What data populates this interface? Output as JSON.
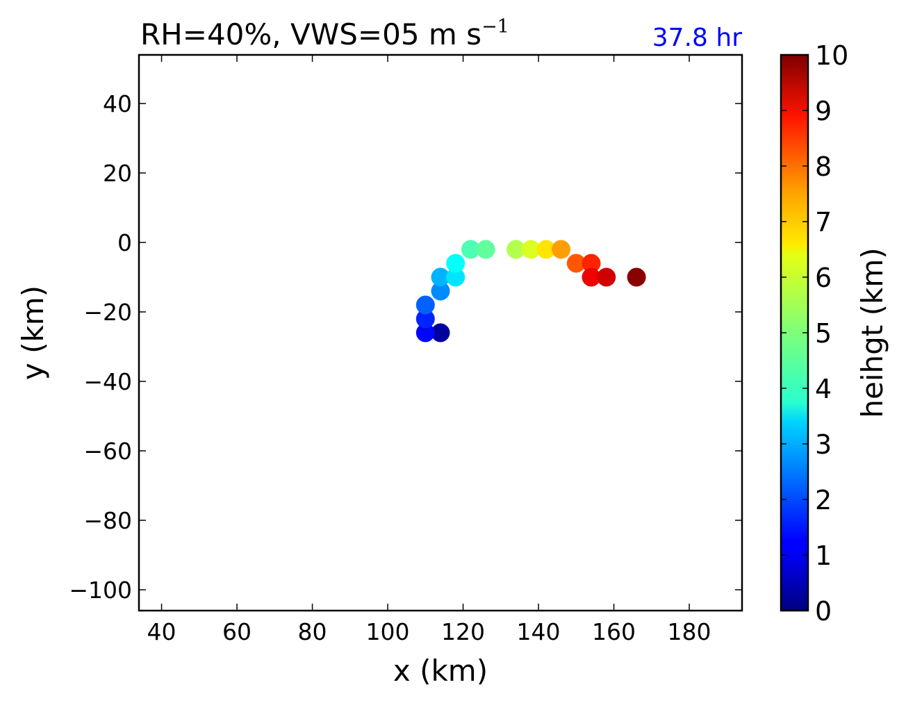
{
  "chart_data": {
    "type": "scatter",
    "title": {
      "main": "RH=40%, VWS=05 m s",
      "exponent": "−1"
    },
    "time_label": "37.8 hr",
    "time_label_color": "#0000ff",
    "xlabel": "x (km)",
    "ylabel": "y (km)",
    "xlim": [
      34,
      194
    ],
    "ylim": [
      -106,
      54
    ],
    "xticks": [
      40,
      60,
      80,
      100,
      120,
      140,
      160,
      180
    ],
    "yticks": [
      40,
      20,
      0,
      -20,
      -40,
      -60,
      -80,
      -100
    ],
    "grid": false,
    "colorbar": {
      "label": "heihgt (km)",
      "range": [
        0,
        10
      ],
      "ticks": [
        0,
        1,
        2,
        3,
        4,
        5,
        6,
        7,
        8,
        9,
        10
      ],
      "colormap": "jet"
    },
    "points": [
      {
        "x": 114,
        "y": -26,
        "height": 0.3
      },
      {
        "x": 110,
        "y": -26,
        "height": 1.3
      },
      {
        "x": 110,
        "y": -22,
        "height": 1.6
      },
      {
        "x": 110,
        "y": -18,
        "height": 2.2
      },
      {
        "x": 114,
        "y": -14,
        "height": 2.6
      },
      {
        "x": 114,
        "y": -10,
        "height": 3.0
      },
      {
        "x": 118,
        "y": -10,
        "height": 3.5
      },
      {
        "x": 118,
        "y": -6,
        "height": 3.8
      },
      {
        "x": 122,
        "y": -2,
        "height": 4.5
      },
      {
        "x": 126,
        "y": -2,
        "height": 4.7
      },
      {
        "x": 134,
        "y": -2,
        "height": 5.5
      },
      {
        "x": 138,
        "y": -2,
        "height": 5.9
      },
      {
        "x": 142,
        "y": -2,
        "height": 6.5
      },
      {
        "x": 146,
        "y": -2,
        "height": 7.2
      },
      {
        "x": 150,
        "y": -6,
        "height": 7.9
      },
      {
        "x": 154,
        "y": -6,
        "height": 8.4
      },
      {
        "x": 154,
        "y": -10,
        "height": 8.9
      },
      {
        "x": 158,
        "y": -10,
        "height": 9.2
      },
      {
        "x": 166,
        "y": -10,
        "height": 9.9
      }
    ]
  }
}
